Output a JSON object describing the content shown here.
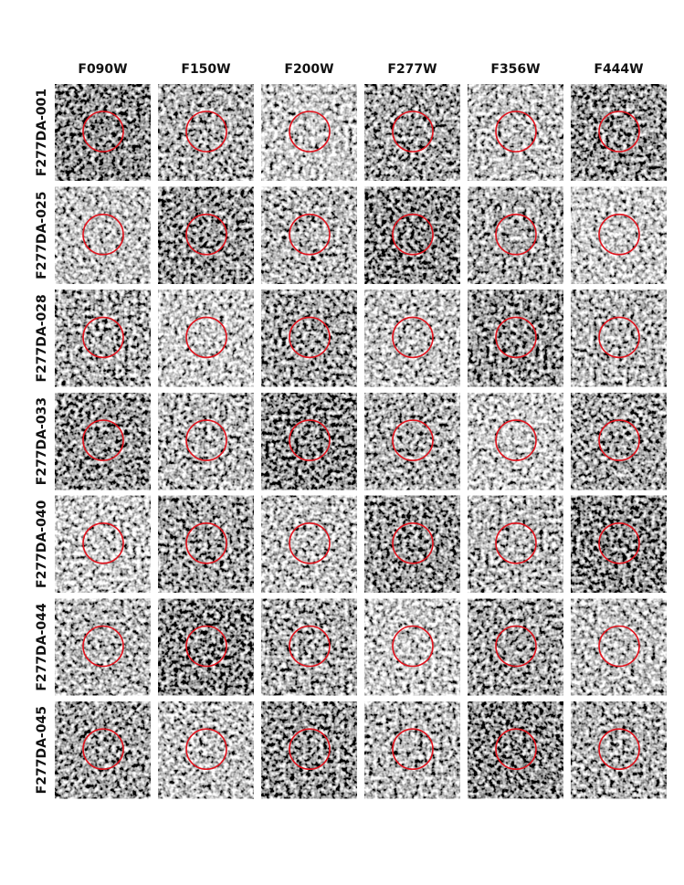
{
  "columns": [
    "F090W",
    "F150W",
    "F200W",
    "F277W",
    "F356W",
    "F444W"
  ],
  "rows": [
    "F277DA-001",
    "F277DA-025",
    "F277DA-028",
    "F277DA-033",
    "F277DA-040",
    "F277DA-044",
    "F277DA-045"
  ]
}
